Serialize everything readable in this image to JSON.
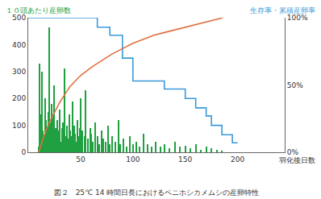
{
  "chart_data": {
    "type": "bar",
    "title": "図２　25℃ 14 時間日長におけるベニホシカメムシの産卵特性",
    "x_label": "羽化後日数",
    "y_label": "１０頭あたり産卵数",
    "y2_label": "生存率・累積産卵率",
    "xlim": [
      0,
      245
    ],
    "xticks": [
      50,
      100,
      150,
      200
    ],
    "ylim": [
      0,
      500
    ],
    "yticks": [
      0,
      100,
      200,
      300,
      400,
      500
    ],
    "y2lim": [
      0,
      100
    ],
    "y2ticks": [
      {
        "value": 0,
        "label": "0%"
      },
      {
        "value": 50,
        "label": "50%"
      },
      {
        "value": 100,
        "label": "100%"
      }
    ],
    "grid": false,
    "series": [
      {
        "type": "bar",
        "color": "#20a040",
        "x": [
          10,
          11,
          12,
          13,
          14,
          15,
          16,
          17,
          18,
          19,
          20,
          21,
          22,
          23,
          24,
          25,
          26,
          27,
          28,
          29,
          30,
          31,
          32,
          33,
          34,
          35,
          36,
          37,
          38,
          39,
          40,
          41,
          42,
          43,
          44,
          45,
          46,
          47,
          48,
          49,
          50,
          52,
          54,
          55,
          57,
          59,
          60,
          62,
          64,
          66,
          68,
          70,
          72,
          74,
          76,
          78,
          80,
          83,
          86,
          88,
          91,
          94,
          97,
          100,
          103,
          106,
          110,
          114,
          118,
          122,
          126,
          130,
          135,
          140,
          145,
          150,
          155,
          160,
          165,
          170,
          175,
          180,
          185
        ],
        "values": [
          20,
          330,
          140,
          300,
          80,
          60,
          200,
          120,
          90,
          150,
          465,
          110,
          180,
          70,
          140,
          250,
          90,
          60,
          120,
          80,
          160,
          40,
          90,
          110,
          70,
          310,
          60,
          100,
          50,
          140,
          80,
          60,
          190,
          50,
          100,
          70,
          40,
          120,
          60,
          90,
          200,
          80,
          60,
          230,
          50,
          90,
          70,
          40,
          110,
          60,
          30,
          80,
          50,
          40,
          100,
          30,
          60,
          40,
          120,
          30,
          50,
          20,
          60,
          30,
          40,
          20,
          70,
          30,
          20,
          40,
          20,
          30,
          15,
          40,
          20,
          25,
          15,
          30,
          10,
          20,
          15,
          10,
          5
        ]
      },
      {
        "type": "line",
        "axis": "y2",
        "line_style": "step",
        "color": "#3a9ad9",
        "x": [
          0,
          66,
          78,
          90,
          100,
          130,
          150,
          160,
          170,
          175,
          185,
          195,
          200
        ],
        "values": [
          100,
          93,
          87,
          70,
          53,
          47,
          40,
          33,
          27,
          20,
          13,
          7,
          7
        ]
      },
      {
        "type": "line",
        "axis": "y2",
        "line_style": "solid",
        "color": "#e07040",
        "x": [
          10,
          12,
          15,
          20,
          25,
          30,
          35,
          40,
          50,
          60,
          70,
          80,
          90,
          100,
          110,
          120,
          130,
          140,
          150,
          160,
          170,
          180,
          186
        ],
        "values": [
          0,
          5,
          12,
          22,
          30,
          37,
          43,
          49,
          57,
          63,
          68,
          73,
          77,
          81,
          84,
          87,
          89,
          91,
          93,
          95,
          97,
          99,
          100
        ]
      }
    ]
  }
}
